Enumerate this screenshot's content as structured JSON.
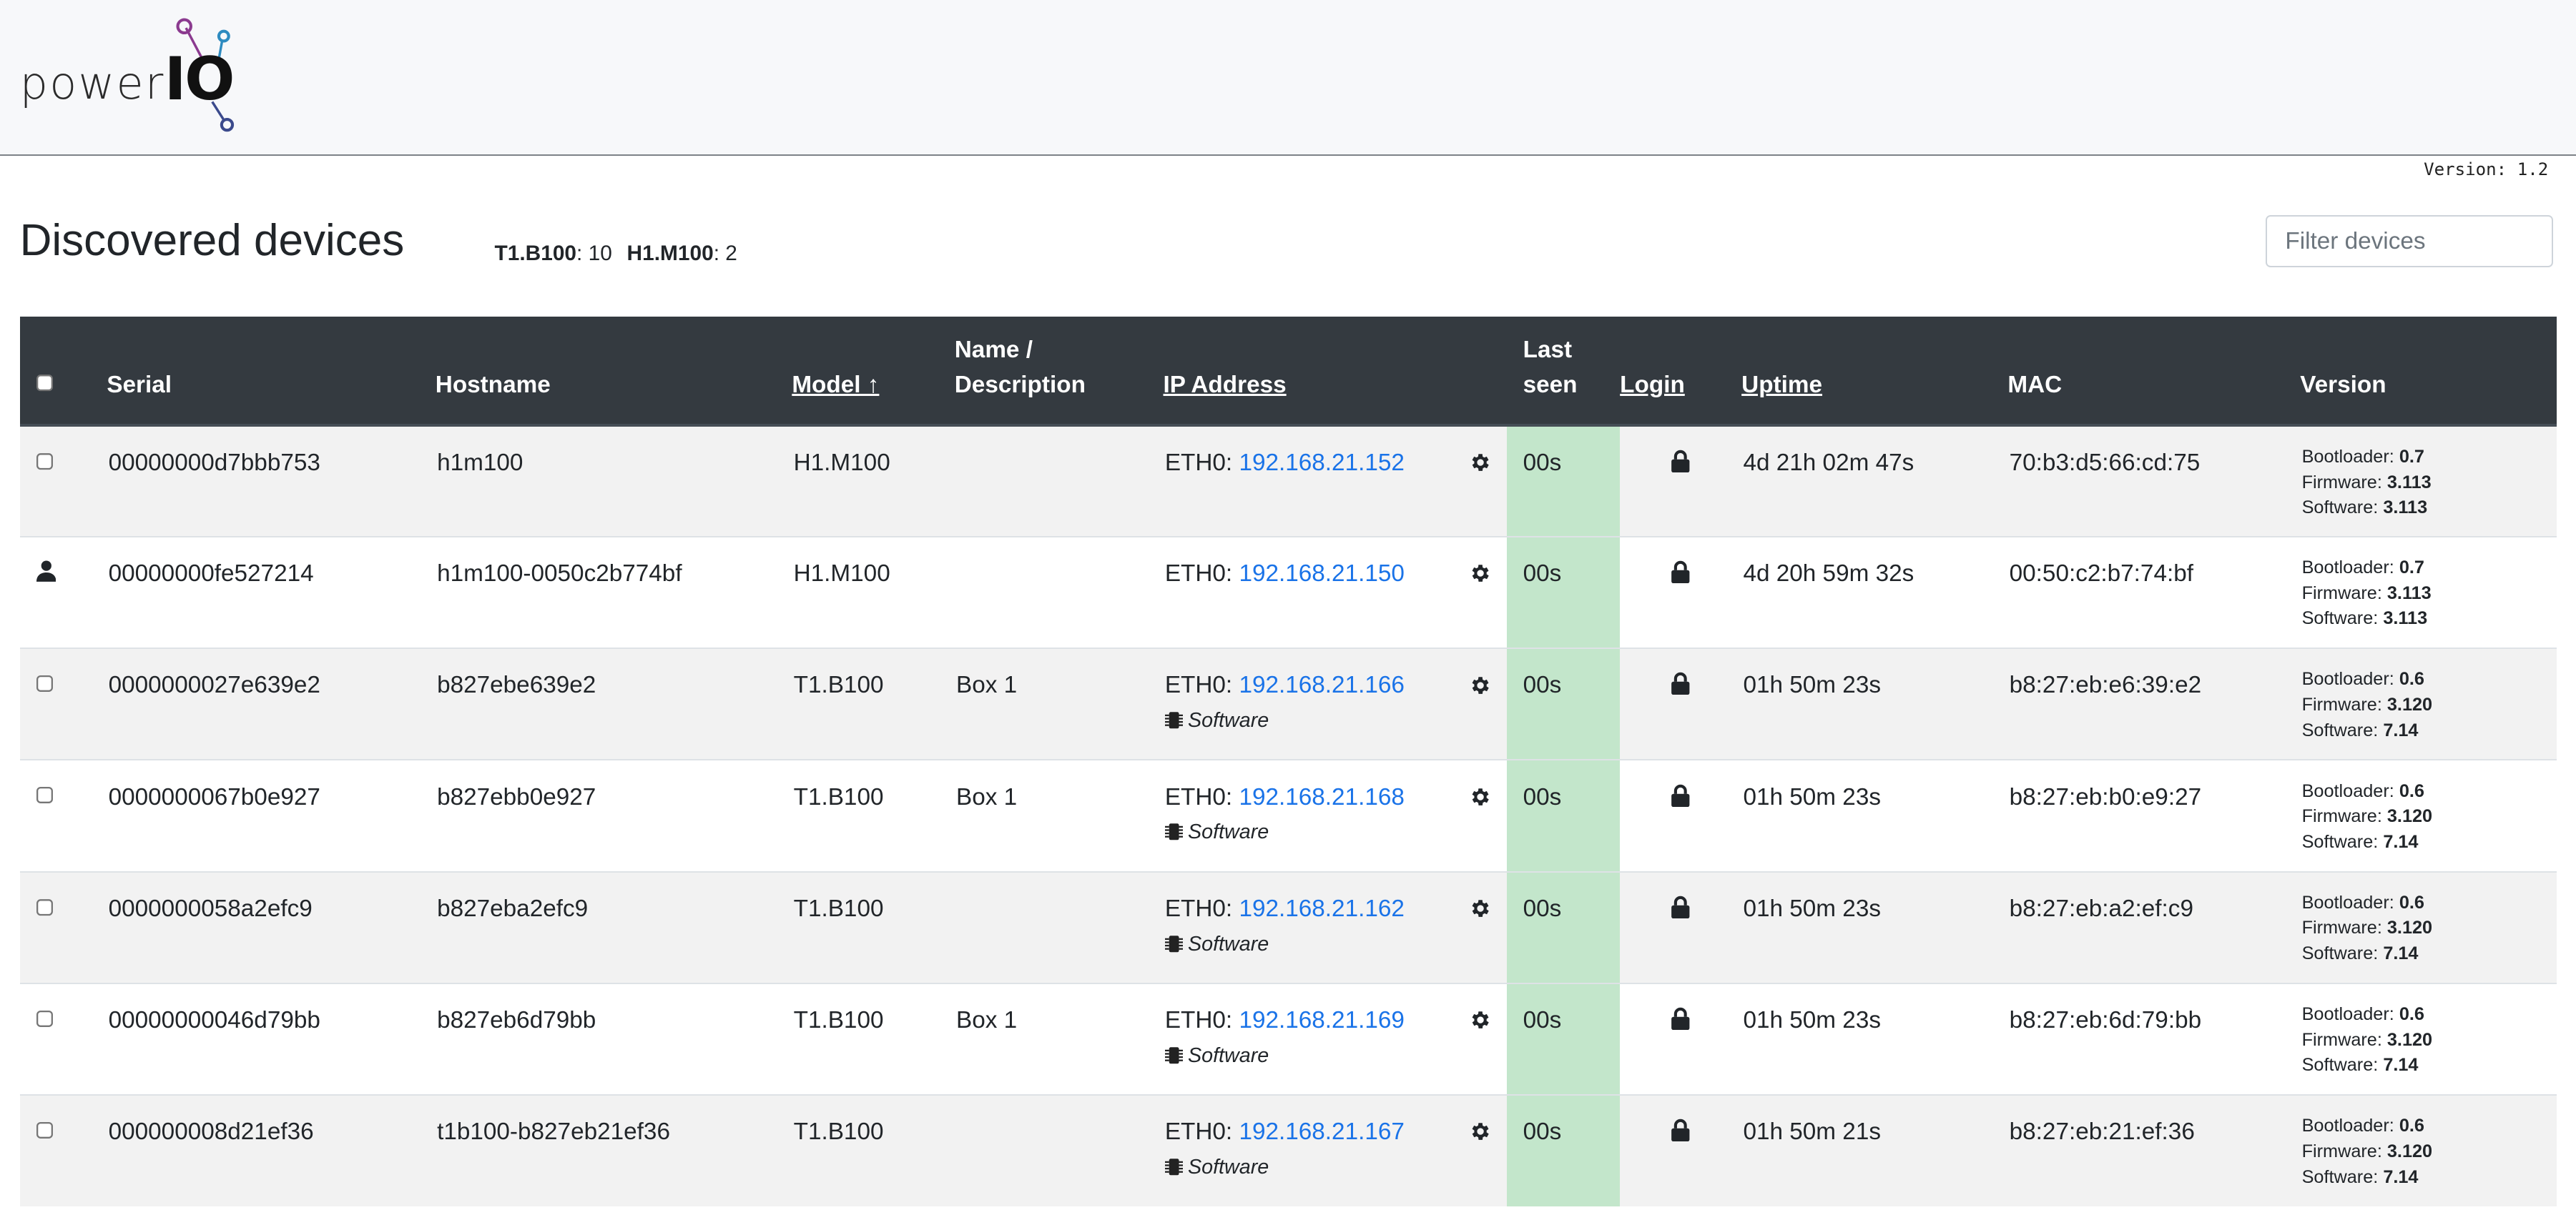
{
  "app": {
    "logo_text_light": "power",
    "logo_text_bold": "IO",
    "version": "Version: 1.2"
  },
  "page": {
    "title": "Discovered devices",
    "counts": [
      {
        "model": "T1.B100",
        "count": ": 10"
      },
      {
        "model": "H1.M100",
        "count": ": 2"
      }
    ],
    "filter_placeholder": "Filter devices"
  },
  "table": {
    "headers": {
      "serial": "Serial",
      "hostname": "Hostname",
      "model": "Model ↑",
      "name_line1": "Name /",
      "name_line2": "Description",
      "ip": "IP Address",
      "last_line1": "Last",
      "last_line2": "seen",
      "login": "Login",
      "uptime": "Uptime",
      "mac": "MAC",
      "version": "Version"
    },
    "labels": {
      "eth": "ETH0: ",
      "software_tag": "Software",
      "bootloader": "Bootloader: ",
      "firmware": "Firmware: ",
      "software": "Software: "
    },
    "rows": [
      {
        "selector": "checkbox",
        "serial": "00000000d7bbb753",
        "hostname": "h1m100",
        "model": "H1.M100",
        "name": "",
        "ip": "192.168.21.152",
        "software_tag": false,
        "last_seen": "00s",
        "uptime": "4d 21h 02m 47s",
        "mac": "70:b3:d5:66:cd:75",
        "bootloader": "0.7",
        "firmware": "3.113",
        "software": "3.113"
      },
      {
        "selector": "user",
        "serial": "00000000fe527214",
        "hostname": "h1m100-0050c2b774bf",
        "model": "H1.M100",
        "name": "",
        "ip": "192.168.21.150",
        "software_tag": false,
        "last_seen": "00s",
        "uptime": "4d 20h 59m 32s",
        "mac": "00:50:c2:b7:74:bf",
        "bootloader": "0.7",
        "firmware": "3.113",
        "software": "3.113"
      },
      {
        "selector": "checkbox",
        "serial": "0000000027e639e2",
        "hostname": "b827ebe639e2",
        "model": "T1.B100",
        "name": "Box 1",
        "ip": "192.168.21.166",
        "software_tag": true,
        "last_seen": "00s",
        "uptime": "01h 50m 23s",
        "mac": "b8:27:eb:e6:39:e2",
        "bootloader": "0.6",
        "firmware": "3.120",
        "software": "7.14"
      },
      {
        "selector": "checkbox",
        "serial": "0000000067b0e927",
        "hostname": "b827ebb0e927",
        "model": "T1.B100",
        "name": "Box 1",
        "ip": "192.168.21.168",
        "software_tag": true,
        "last_seen": "00s",
        "uptime": "01h 50m 23s",
        "mac": "b8:27:eb:b0:e9:27",
        "bootloader": "0.6",
        "firmware": "3.120",
        "software": "7.14"
      },
      {
        "selector": "checkbox",
        "serial": "0000000058a2efc9",
        "hostname": "b827eba2efc9",
        "model": "T1.B100",
        "name": "",
        "ip": "192.168.21.162",
        "software_tag": true,
        "last_seen": "00s",
        "uptime": "01h 50m 23s",
        "mac": "b8:27:eb:a2:ef:c9",
        "bootloader": "0.6",
        "firmware": "3.120",
        "software": "7.14"
      },
      {
        "selector": "checkbox",
        "serial": "00000000046d79bb",
        "hostname": "b827eb6d79bb",
        "model": "T1.B100",
        "name": "Box 1",
        "ip": "192.168.21.169",
        "software_tag": true,
        "last_seen": "00s",
        "uptime": "01h 50m 23s",
        "mac": "b8:27:eb:6d:79:bb",
        "bootloader": "0.6",
        "firmware": "3.120",
        "software": "7.14"
      },
      {
        "selector": "checkbox",
        "serial": "000000008d21ef36",
        "hostname": "t1b100-b827eb21ef36",
        "model": "T1.B100",
        "name": "",
        "ip": "192.168.21.167",
        "software_tag": true,
        "last_seen": "00s",
        "uptime": "01h 50m 21s",
        "mac": "b8:27:eb:21:ef:36",
        "bootloader": "0.6",
        "firmware": "3.120",
        "software": "7.14"
      }
    ]
  },
  "icons": {
    "row_settings": "gear-icon",
    "row_login": "lock-icon",
    "software_tag": "chip-icon",
    "current_user": "user-icon"
  },
  "colors": {
    "header_bg": "#343a40",
    "link": "#1a73e8",
    "last_seen_ok": "#c3e6cb",
    "row_stripe": "#f2f2f2",
    "logo_purple": "#8b3a8f",
    "logo_blue": "#2e8bc0",
    "logo_navy": "#3b4a8c"
  }
}
